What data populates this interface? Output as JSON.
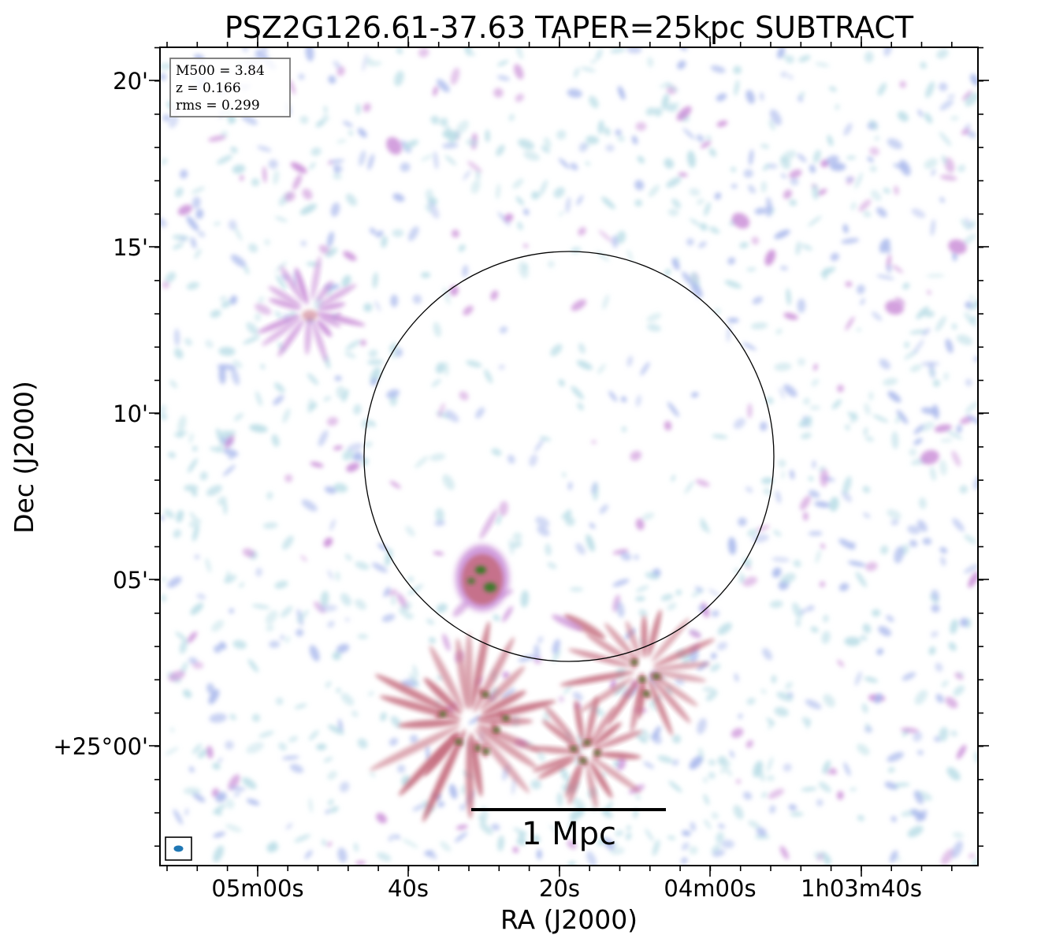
{
  "figure": {
    "title": "PSZ2G126.61-37.63 TAPER=25kpc SUBTRACT",
    "xlabel": "RA (J2000)",
    "ylabel": "Dec (J2000)",
    "info": {
      "m500": "M500 = 3.84",
      "z": "z = 0.166",
      "rms": "rms = 0.299"
    },
    "scalebar": {
      "label": "1 Mpc"
    },
    "x_ticks": [
      "05m00s",
      "40s",
      "20s",
      "04m00s",
      "1h03m40s"
    ],
    "y_ticks": [
      "20'",
      "15'",
      "10'",
      "05'",
      "+25°00'"
    ],
    "colors": {
      "noise_light": "#b9dde6",
      "noise_mid": "#a9b8ec",
      "emission_pink": "#c88ad6",
      "emission_red": "#c46a7c",
      "emission_green": "#2f7a1e",
      "beam": "#1f77b4",
      "background": "#ffffff"
    },
    "overlays": [
      "r500-circle",
      "beam-ellipse",
      "info-box",
      "scale-bar"
    ]
  }
}
